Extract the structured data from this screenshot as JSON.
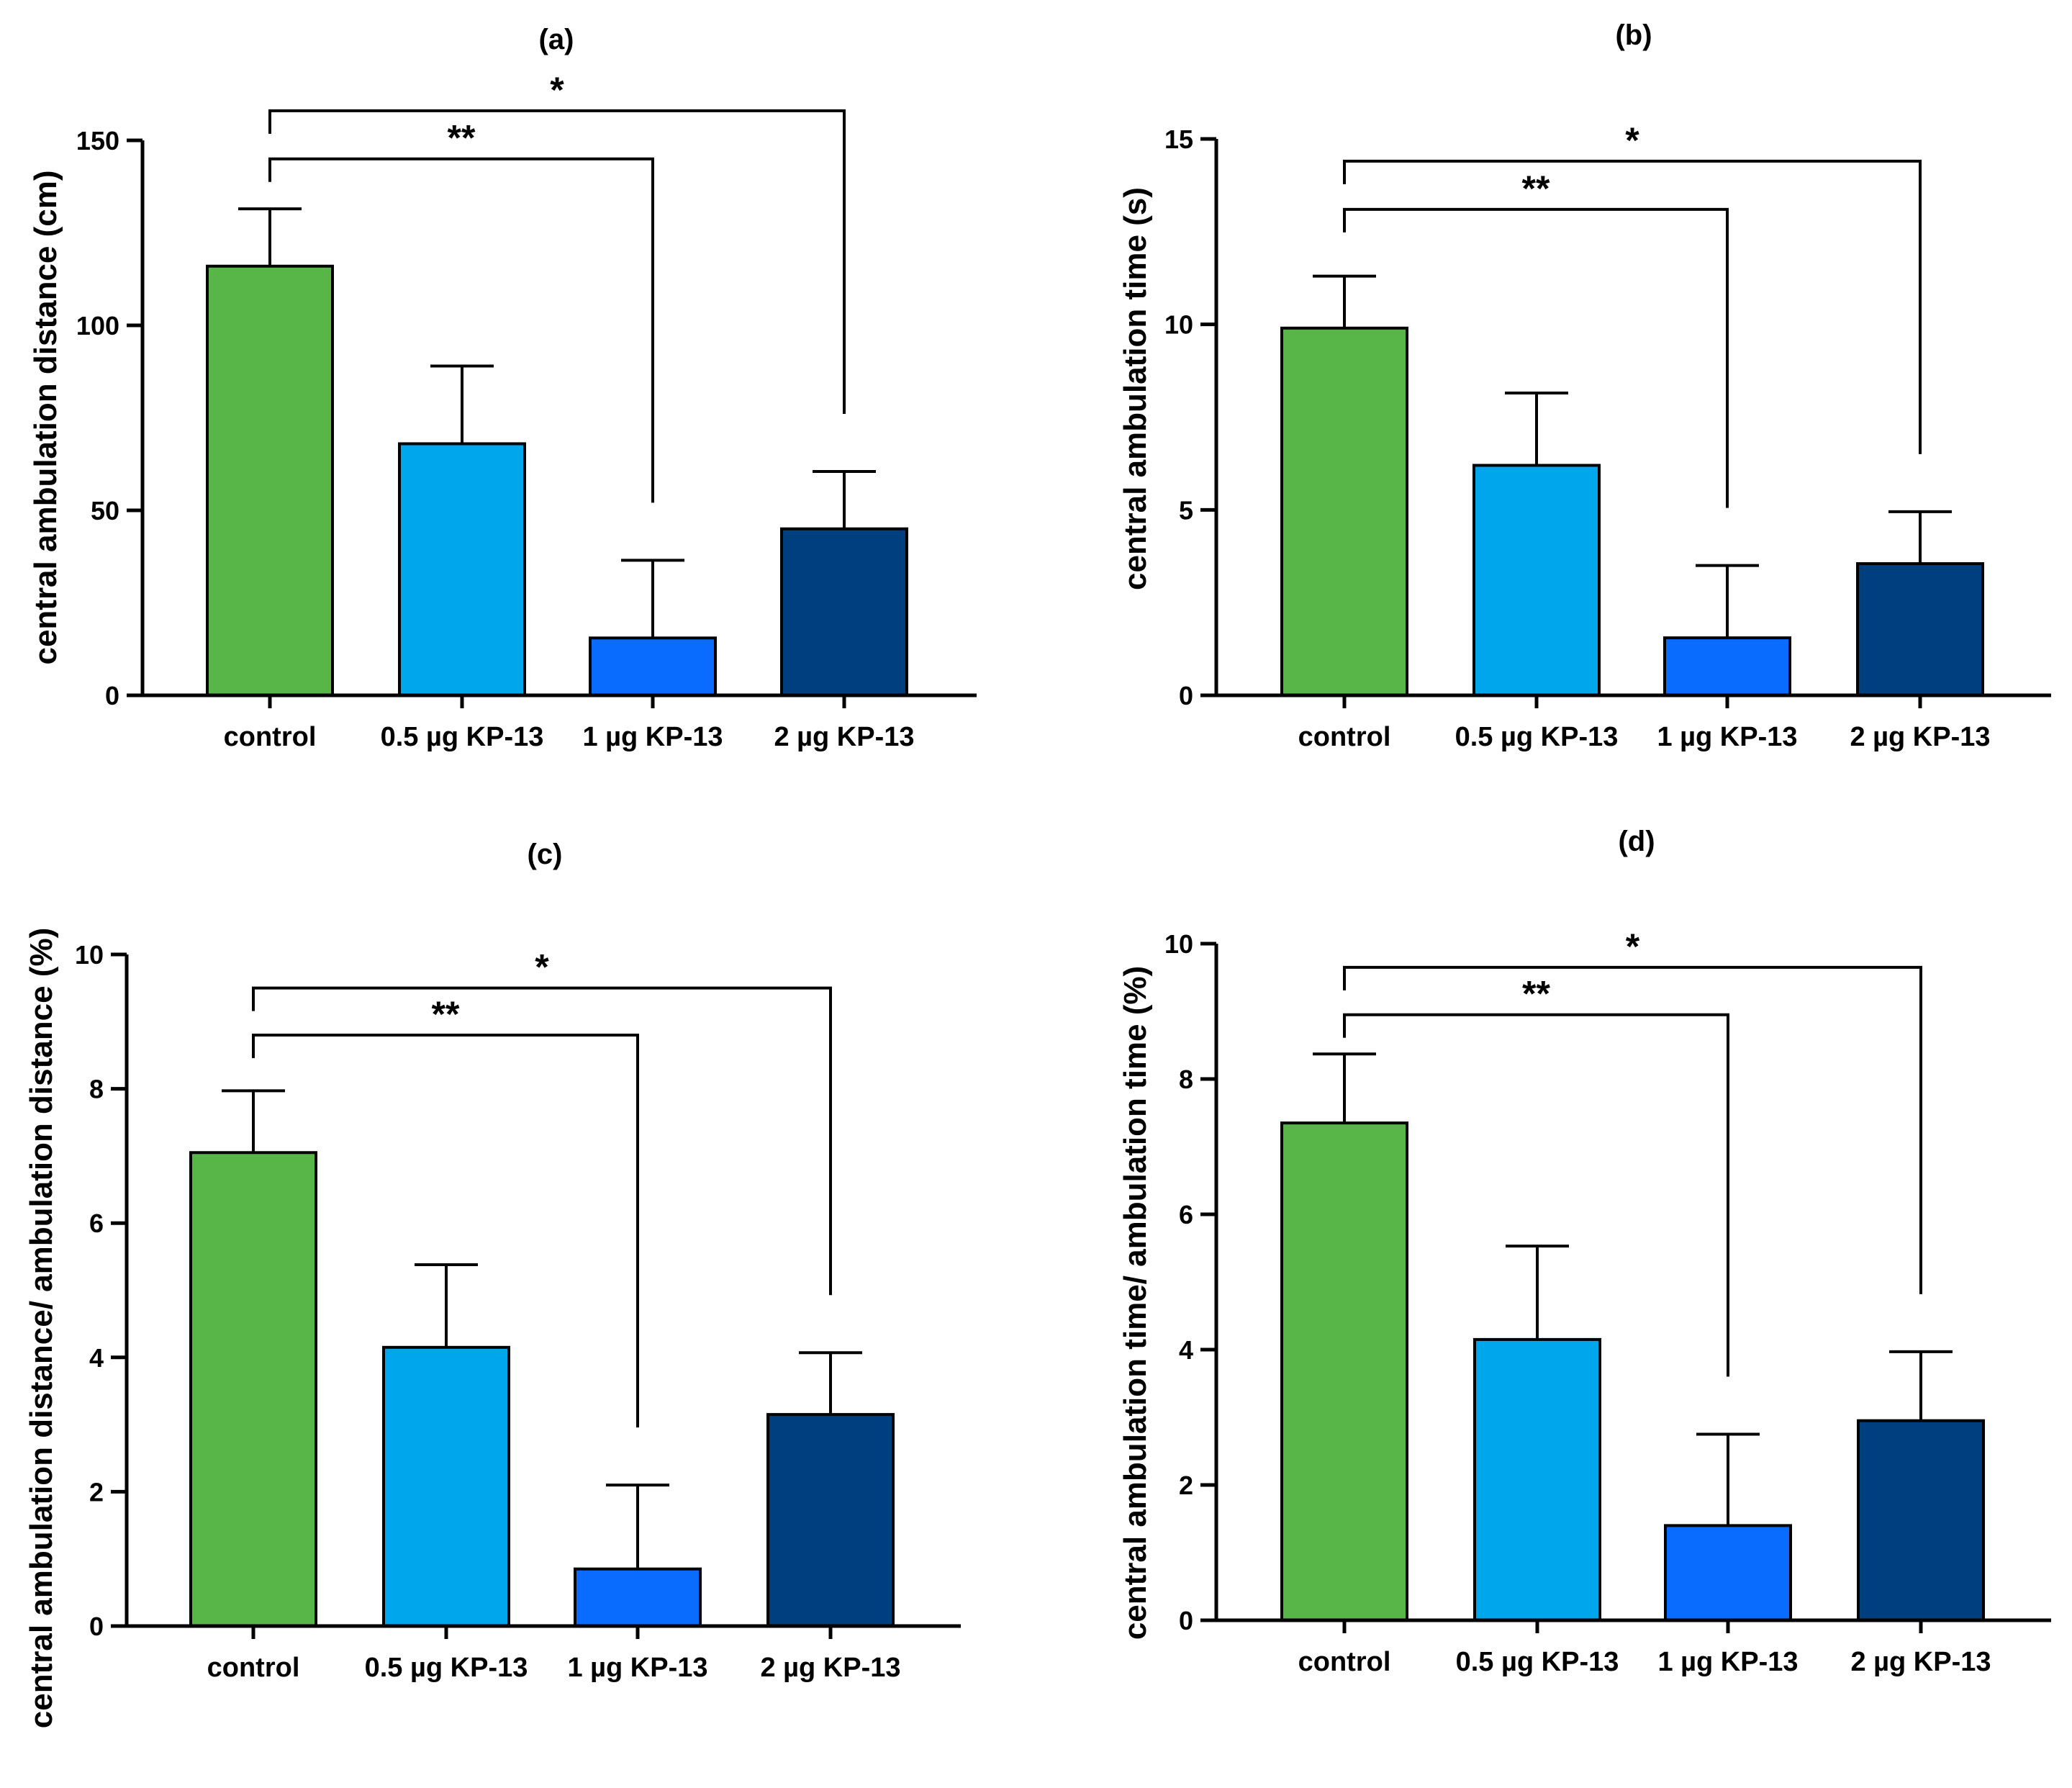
{
  "chart_data": [
    {
      "type": "bar",
      "title": "(a)",
      "ylabel": "central ambulation distance (cm)",
      "categories": [
        "control",
        "0.5 µg KP-13",
        "1 µg KP-13",
        "2 µg KP-13"
      ],
      "values": [
        116,
        68,
        15.5,
        45
      ],
      "errors": [
        15.5,
        21,
        21,
        15.5
      ],
      "ylim": [
        0,
        150
      ],
      "yticks": [
        0,
        50,
        100,
        150
      ],
      "significance": [
        {
          "from": 0,
          "to": 2,
          "label": "**",
          "level": 145
        },
        {
          "from": 0,
          "to": 3,
          "label": "*",
          "level": 158
        }
      ]
    },
    {
      "type": "bar",
      "title": "(b)",
      "ylabel": "central ambulation time (s)",
      "categories": [
        "control",
        "0.5 µg KP-13",
        "1 µg KP-13",
        "2 µg KP-13"
      ],
      "values": [
        9.9,
        6.2,
        1.55,
        3.55
      ],
      "errors": [
        1.4,
        1.95,
        1.95,
        1.4
      ],
      "ylim": [
        0,
        15
      ],
      "yticks": [
        0,
        5,
        10,
        15
      ],
      "significance": [
        {
          "from": 0,
          "to": 2,
          "label": "**",
          "level": 13.1
        },
        {
          "from": 0,
          "to": 3,
          "label": "*",
          "level": 14.4
        }
      ]
    },
    {
      "type": "bar",
      "title": "(c)",
      "ylabel": "central ambulation distance/ ambulation distance (%)",
      "categories": [
        "control",
        "0.5 µg KP-13",
        "1 µg KP-13",
        "2 µg KP-13"
      ],
      "values": [
        7.05,
        4.15,
        0.85,
        3.15
      ],
      "errors": [
        0.92,
        1.23,
        1.25,
        0.92
      ],
      "ylim": [
        0,
        10
      ],
      "yticks": [
        0,
        2,
        4,
        6,
        8,
        10
      ],
      "significance": [
        {
          "from": 0,
          "to": 2,
          "label": "**",
          "level": 8.8
        },
        {
          "from": 0,
          "to": 3,
          "label": "*",
          "level": 9.5
        }
      ]
    },
    {
      "type": "bar",
      "title": "(d)",
      "ylabel": "central ambulation time/ ambulation time (%)",
      "categories": [
        "control",
        "0.5 µg KP-13",
        "1 µg KP-13",
        "2 µg KP-13"
      ],
      "values": [
        7.35,
        4.15,
        1.4,
        2.95
      ],
      "errors": [
        1.02,
        1.38,
        1.35,
        1.02
      ],
      "ylim": [
        0,
        10
      ],
      "yticks": [
        0,
        2,
        4,
        6,
        8,
        10
      ],
      "significance": [
        {
          "from": 0,
          "to": 2,
          "label": "**",
          "level": 8.95
        },
        {
          "from": 0,
          "to": 3,
          "label": "*",
          "level": 9.65
        }
      ]
    }
  ],
  "colors": {
    "control": "#58b548",
    "0.5 µg KP-13": "#00a6ec",
    "1 µg KP-13": "#0a6bff",
    "2 µg KP-13": "#003f7f",
    "axis": "#000000"
  }
}
